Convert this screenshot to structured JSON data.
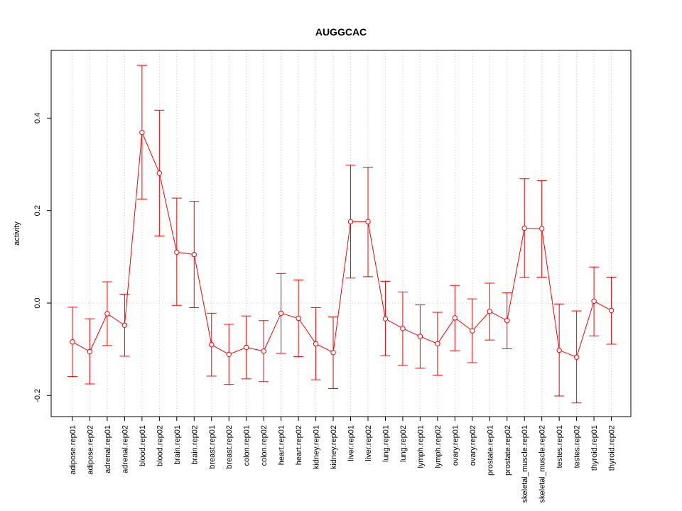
{
  "chart_data": {
    "type": "line",
    "title": "AUGGCAC",
    "xlabel": "",
    "ylabel": "activity",
    "ylim": [
      -0.24,
      0.55
    ],
    "yticks": [
      -0.2,
      0.0,
      0.2,
      0.4
    ],
    "ytick_labels": [
      "-0.2",
      "0.0",
      "0.2",
      "0.4"
    ],
    "grid": true,
    "series_color": "#ff0000",
    "categories": [
      "adipose.rep01",
      "adipose.rep02",
      "adrenal.rep01",
      "adrenal.rep02",
      "blood.rep01",
      "blood.rep02",
      "brain.rep01",
      "brain.rep02",
      "breast.rep01",
      "breast.rep02",
      "colon.rep01",
      "colon.rep02",
      "heart.rep01",
      "heart.rep02",
      "kidney.rep01",
      "kidney.rep02",
      "liver.rep01",
      "liver.rep02",
      "lung.rep01",
      "lung.rep02",
      "lymph.rep01",
      "lymph.rep02",
      "ovary.rep01",
      "ovary.rep02",
      "prostate.rep01",
      "prostate.rep02",
      "skeletal_muscle.rep01",
      "skeletal_muscle.rep02",
      "testes.rep01",
      "testes.rep02",
      "thyroid.rep01",
      "thyroid.rep02"
    ],
    "values": [
      -0.084,
      -0.105,
      -0.023,
      -0.048,
      0.369,
      0.281,
      0.11,
      0.105,
      -0.09,
      -0.111,
      -0.096,
      -0.104,
      -0.022,
      -0.033,
      -0.088,
      -0.107,
      0.176,
      0.176,
      -0.034,
      -0.055,
      -0.072,
      -0.088,
      -0.032,
      -0.06,
      -0.018,
      -0.038,
      0.162,
      0.161,
      -0.102,
      -0.117,
      0.004,
      -0.016
    ],
    "lower": [
      -0.159,
      -0.175,
      -0.092,
      -0.115,
      0.225,
      0.145,
      -0.005,
      -0.01,
      -0.158,
      -0.176,
      -0.164,
      -0.17,
      -0.109,
      -0.116,
      -0.166,
      -0.185,
      0.054,
      0.057,
      -0.114,
      -0.135,
      -0.141,
      -0.156,
      -0.103,
      -0.129,
      -0.08,
      -0.099,
      0.055,
      0.056,
      -0.201,
      -0.216,
      -0.071,
      -0.089
    ],
    "upper": [
      -0.009,
      -0.034,
      0.046,
      0.019,
      0.514,
      0.417,
      0.227,
      0.22,
      -0.022,
      -0.046,
      -0.028,
      -0.038,
      0.064,
      0.05,
      -0.01,
      -0.03,
      0.298,
      0.294,
      0.047,
      0.024,
      -0.004,
      -0.02,
      0.038,
      0.009,
      0.043,
      0.022,
      0.269,
      0.265,
      -0.002,
      -0.017,
      0.078,
      0.056
    ]
  }
}
